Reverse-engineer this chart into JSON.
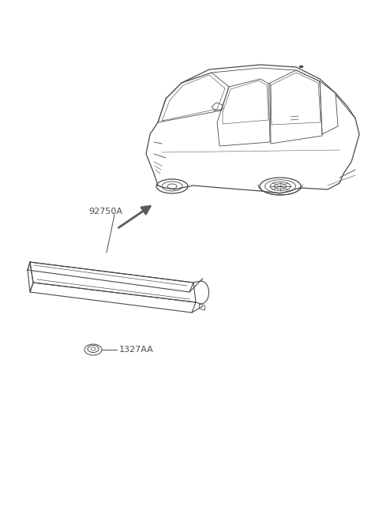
{
  "background_color": "#ffffff",
  "label_92750A": "92750A",
  "label_1327AA": "1327AA",
  "line_color": "#4a4a4a",
  "arrow_color": "#5a5a5a",
  "fig_width": 4.8,
  "fig_height": 6.55,
  "dpi": 100
}
